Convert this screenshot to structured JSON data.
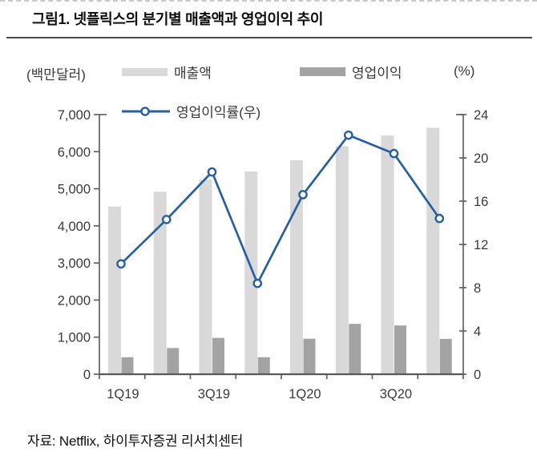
{
  "title": "그림1. 넷플릭스의 분기별 매출액과 영업이익 추이",
  "source": "자료: Netflix, 하이투자증권 리서치센터",
  "colors": {
    "revenue_bar": "#d9d9d9",
    "op_bar": "#a3a3a3",
    "margin_line": "#2760a1",
    "marker_fill": "#ffffff",
    "axis": "#595959",
    "axis_text": "#3a3a3a"
  },
  "chart_data": {
    "type": "bar",
    "subtype": "combo-bar-line",
    "categories": [
      "1Q19",
      "2Q19",
      "3Q19",
      "4Q19",
      "1Q20",
      "2Q20",
      "3Q20",
      "4Q20"
    ],
    "x_tick_labels_shown": [
      "1Q19",
      "3Q19",
      "1Q20",
      "3Q20"
    ],
    "series": [
      {
        "name": "매출액",
        "type": "bar",
        "axis": "left",
        "color": "#d9d9d9",
        "values": [
          4521,
          4923,
          5245,
          5467,
          5768,
          6148,
          6436,
          6644
        ]
      },
      {
        "name": "영업이익",
        "type": "bar",
        "axis": "left",
        "color": "#a3a3a3",
        "values": [
          459,
          706,
          980,
          459,
          958,
          1358,
          1315,
          954
        ]
      },
      {
        "name": "영업이익률(우)",
        "type": "line",
        "axis": "right",
        "color": "#2760a1",
        "values": [
          10.2,
          14.3,
          18.7,
          8.4,
          16.6,
          22.1,
          20.4,
          14.4
        ]
      }
    ],
    "left_axis": {
      "unit": "(백만달러)",
      "min": 0,
      "max": 7000,
      "step": 1000
    },
    "right_axis": {
      "unit": "(%)",
      "min": 0,
      "max": 24,
      "step": 4
    },
    "legend_position": "top",
    "grid": false
  }
}
